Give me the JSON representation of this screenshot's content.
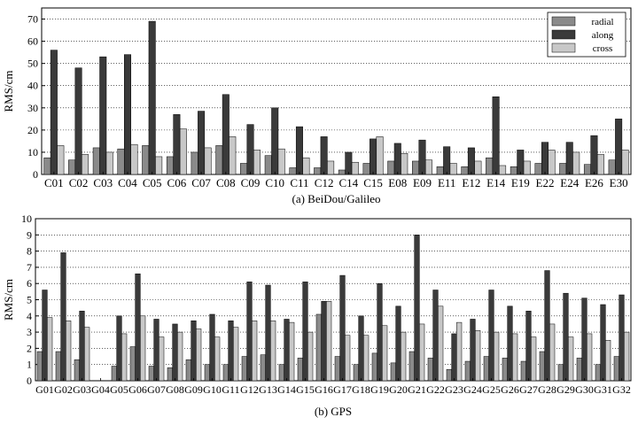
{
  "chart_data": [
    {
      "type": "bar",
      "caption": "(a) BeiDou/Galileo",
      "ylabel": "RMS/cm",
      "ylim": [
        0,
        75
      ],
      "yticks": [
        0,
        10,
        20,
        30,
        40,
        50,
        60,
        70
      ],
      "grid": true,
      "legend": "top-right",
      "categories": [
        "C01",
        "C02",
        "C03",
        "C04",
        "C05",
        "C06",
        "C07",
        "C08",
        "C09",
        "C10",
        "C11",
        "C12",
        "C14",
        "C15",
        "E08",
        "E09",
        "E11",
        "E12",
        "E14",
        "E19",
        "E22",
        "E24",
        "E26",
        "E30"
      ],
      "series": [
        {
          "name": "radial",
          "color": "#8a8a8a",
          "values": [
            7.5,
            6.5,
            12,
            11.5,
            13,
            8,
            10,
            13,
            5,
            8.5,
            3,
            3,
            2,
            5,
            6,
            6,
            3.5,
            3.5,
            7.5,
            3.5,
            5,
            5,
            4.5,
            6.5
          ]
        },
        {
          "name": "along",
          "color": "#3a3a3a",
          "values": [
            56,
            48,
            53,
            54,
            69,
            27,
            28.5,
            36,
            22.5,
            30,
            21.5,
            17,
            10,
            16,
            14,
            15.5,
            12.5,
            12,
            35,
            11,
            14.5,
            14.5,
            17.5,
            25
          ]
        },
        {
          "name": "cross",
          "color": "#c8c8c8",
          "values": [
            13,
            9,
            10,
            13.5,
            8,
            20.5,
            12,
            17,
            11,
            11.5,
            7.5,
            6,
            5.5,
            17,
            9.5,
            6.5,
            5,
            6,
            4,
            6,
            11,
            10,
            9,
            11
          ]
        }
      ]
    },
    {
      "type": "bar",
      "caption": "(b) GPS",
      "ylabel": "RMS/cm",
      "ylim": [
        0,
        10
      ],
      "yticks": [
        0,
        1,
        2,
        3,
        4,
        5,
        6,
        7,
        8,
        9,
        10
      ],
      "grid": true,
      "categories": [
        "G01",
        "G02",
        "G03",
        "G04",
        "G05",
        "G06",
        "G07",
        "G08",
        "G09",
        "G10",
        "G11",
        "G12",
        "G13",
        "G14",
        "G15",
        "G16",
        "G17",
        "G18",
        "G19",
        "G20",
        "G21",
        "G22",
        "G23",
        "G24",
        "G25",
        "G26",
        "G27",
        "G28",
        "G29",
        "G30",
        "G31",
        "G32"
      ],
      "series": [
        {
          "name": "radial",
          "color": "#8a8a8a",
          "values": [
            1.8,
            1.8,
            1.3,
            0,
            0.9,
            2.1,
            0.9,
            0.8,
            1.3,
            1.0,
            1.0,
            1.5,
            1.6,
            1.0,
            1.4,
            4.1,
            1.5,
            1.0,
            1.7,
            1.1,
            1.8,
            1.4,
            0.7,
            1.2,
            1.5,
            1.4,
            1.2,
            1.8,
            1.0,
            1.4,
            1.0,
            1.5
          ]
        },
        {
          "name": "along",
          "color": "#3a3a3a",
          "values": [
            5.6,
            7.9,
            4.3,
            0,
            4.0,
            6.6,
            3.8,
            3.5,
            3.7,
            4.1,
            3.7,
            6.1,
            5.9,
            3.8,
            6.1,
            4.9,
            6.5,
            4.0,
            6.0,
            4.6,
            9.0,
            5.6,
            2.9,
            3.8,
            5.6,
            4.6,
            4.3,
            6.8,
            5.4,
            5.1,
            4.7,
            5.3
          ]
        },
        {
          "name": "cross",
          "color": "#c8c8c8",
          "values": [
            3.9,
            3.7,
            3.3,
            0,
            2.9,
            4.0,
            2.7,
            3.0,
            3.2,
            2.7,
            3.3,
            3.7,
            3.7,
            3.6,
            3.0,
            4.9,
            2.8,
            2.8,
            3.4,
            3.0,
            3.5,
            4.6,
            3.6,
            3.1,
            3.0,
            2.9,
            2.7,
            3.5,
            2.7,
            2.9,
            2.5,
            3.0
          ]
        }
      ]
    }
  ]
}
